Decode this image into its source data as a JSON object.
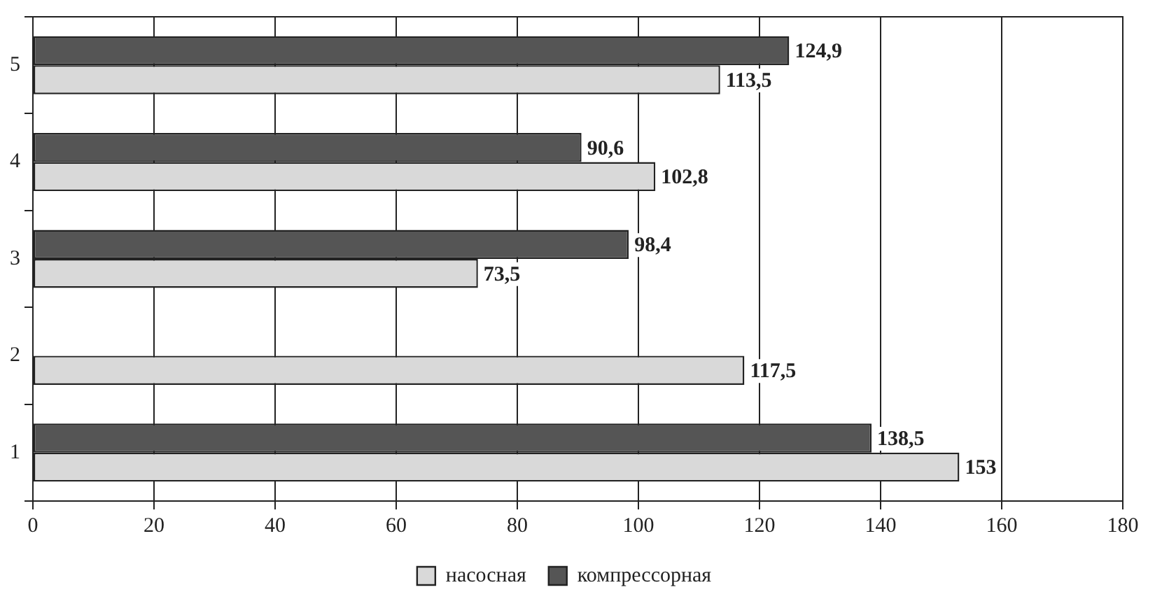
{
  "chart_data": {
    "type": "bar",
    "orientation": "horizontal",
    "categories": [
      "5",
      "4",
      "3",
      "2",
      "1"
    ],
    "series": [
      {
        "name": "насосная",
        "color": "#d9d9d9",
        "values": [
          113.5,
          102.8,
          73.5,
          117.5,
          153
        ],
        "value_labels": [
          "113,5",
          "102,8",
          "73,5",
          "117,5",
          "153"
        ]
      },
      {
        "name": "компрессорная",
        "color": "#555555",
        "values": [
          124.9,
          90.6,
          98.4,
          null,
          138.5
        ],
        "value_labels": [
          "124,9",
          "90,6",
          "98,4",
          null,
          "138,5"
        ]
      }
    ],
    "xlim": [
      0,
      180
    ],
    "xticks": [
      0,
      20,
      40,
      60,
      80,
      100,
      120,
      140,
      160,
      180
    ],
    "grid": "x",
    "legend": "bottom"
  }
}
